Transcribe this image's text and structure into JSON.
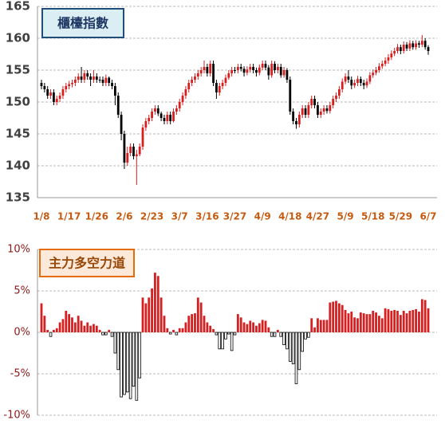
{
  "chart_data": [
    {
      "type": "candlestick",
      "title": "櫃檯指數",
      "categories": [
        "1/8",
        null,
        null,
        null,
        null,
        null,
        null,
        null,
        null,
        "1/17",
        null,
        null,
        null,
        null,
        null,
        null,
        null,
        null,
        "1/26",
        null,
        null,
        null,
        null,
        null,
        null,
        null,
        null,
        "2/6",
        null,
        null,
        null,
        null,
        null,
        null,
        null,
        null,
        "2/23",
        null,
        null,
        null,
        null,
        null,
        null,
        null,
        null,
        "3/7",
        null,
        null,
        null,
        null,
        null,
        null,
        null,
        null,
        "3/16",
        null,
        null,
        null,
        null,
        null,
        null,
        null,
        null,
        "3/27",
        null,
        null,
        null,
        null,
        null,
        null,
        null,
        null,
        "4/9",
        null,
        null,
        null,
        null,
        null,
        null,
        null,
        null,
        "4/18",
        null,
        null,
        null,
        null,
        null,
        null,
        null,
        null,
        "4/27",
        null,
        null,
        null,
        null,
        null,
        null,
        null,
        null,
        "5/9",
        null,
        null,
        null,
        null,
        null,
        null,
        null,
        null,
        "5/18",
        null,
        null,
        null,
        null,
        null,
        null,
        null,
        null,
        "5/29",
        null,
        null,
        null,
        null,
        null,
        null,
        null,
        null,
        "6/7"
      ],
      "open": [
        153,
        152.5,
        152,
        151,
        151.5,
        150,
        150.5,
        151,
        152,
        152.5,
        152.8,
        153,
        153.5,
        154,
        153.5,
        154.5,
        154,
        153.5,
        154,
        153.5,
        153.5,
        153,
        153.8,
        153,
        152.5,
        151,
        148,
        145,
        140.5,
        142,
        143,
        141.5,
        141.8,
        143,
        146,
        147,
        147.5,
        148.5,
        149,
        148.2,
        147.5,
        147,
        148,
        147,
        148.5,
        149,
        150,
        151,
        152,
        153,
        153.5,
        154,
        154.5,
        155,
        155.5,
        154.5,
        156,
        153,
        151.5,
        152.5,
        153,
        153.8,
        154.5,
        155,
        155,
        155.5,
        155.2,
        154.6,
        155.1,
        155.5,
        155,
        154.6,
        155.4,
        156,
        155.4,
        154.2,
        156,
        155,
        155.5,
        154.2,
        155,
        153.5,
        148.5,
        147,
        146.5,
        148,
        149,
        148,
        149.5,
        150.5,
        149.5,
        148,
        148.5,
        149,
        148.6,
        149.5,
        150.5,
        151,
        152,
        153.2,
        154,
        153.5,
        152.6,
        153,
        153.6,
        153,
        152.6,
        153.2,
        154.2,
        154.6,
        155,
        155.6,
        156,
        156.5,
        157,
        157.6,
        158,
        158.6,
        158,
        159,
        158.4,
        159.2,
        158.6,
        159.2,
        159,
        159.6,
        158.6
      ],
      "high": [
        153.5,
        153,
        152.5,
        152,
        152,
        151,
        151.5,
        152.5,
        153,
        153.3,
        153.5,
        154,
        154.5,
        155.5,
        155,
        155,
        154.5,
        155,
        154.5,
        154,
        154,
        154.3,
        154,
        153.5,
        153,
        151.5,
        148.5,
        145.5,
        143,
        143.5,
        143.5,
        142.5,
        143.5,
        146.5,
        147.5,
        148,
        149,
        149.5,
        149.5,
        148.5,
        148,
        148.5,
        148.5,
        149,
        149.5,
        150.5,
        151.5,
        152.5,
        153.5,
        154,
        154.5,
        155,
        155.5,
        156.5,
        156,
        156.5,
        156.5,
        153.5,
        153,
        153.5,
        154.3,
        155,
        155.5,
        155.5,
        156,
        156,
        155.6,
        155.6,
        156,
        156,
        155.4,
        155.9,
        156.5,
        156.5,
        155.8,
        156.5,
        156.4,
        156,
        156,
        155.5,
        155.3,
        154,
        149,
        147.5,
        148.5,
        149.5,
        149.5,
        150,
        151,
        151,
        150,
        149,
        149.5,
        149.5,
        150,
        151,
        151.5,
        152.5,
        153.7,
        154.5,
        155,
        154,
        153.5,
        154.1,
        154,
        153.5,
        153.7,
        154.7,
        155.1,
        155.5,
        156.1,
        156.5,
        157,
        157.5,
        158.1,
        158.5,
        159.1,
        159,
        159.5,
        159.4,
        159.7,
        159.6,
        159.7,
        159.6,
        160.5,
        160,
        158.9
      ],
      "low": [
        152,
        151.5,
        150.5,
        150.5,
        149.5,
        149.5,
        150,
        150.5,
        151.5,
        152,
        152.3,
        152.5,
        153,
        153,
        153,
        153.5,
        152.5,
        153,
        153,
        153,
        152.5,
        152.5,
        152.5,
        152,
        149.5,
        147.5,
        144,
        139.5,
        140,
        141.5,
        141,
        137,
        141.5,
        142.5,
        145.5,
        146.5,
        147,
        148,
        147.8,
        147,
        146.5,
        146.5,
        146.5,
        146.8,
        148,
        148.5,
        149.5,
        150.5,
        151.5,
        152.5,
        153,
        153.5,
        154,
        154.5,
        154,
        154,
        152.5,
        150.5,
        151,
        152,
        152.5,
        153.5,
        154,
        154.5,
        154.5,
        154.8,
        154,
        154.2,
        154.6,
        154.5,
        154,
        154.2,
        155,
        155,
        153.5,
        153.8,
        154.5,
        154.5,
        153.8,
        153.8,
        153,
        148,
        146.5,
        145.8,
        146,
        147.5,
        147.5,
        147.5,
        149,
        149,
        147.5,
        147.5,
        148,
        148.2,
        148.2,
        149,
        150,
        150.5,
        151.5,
        152.8,
        153,
        152,
        152.2,
        152.5,
        152.5,
        152,
        152.2,
        152.8,
        153.8,
        154.2,
        154.6,
        155.2,
        155.6,
        156,
        156.6,
        157.2,
        157.6,
        157.5,
        157.6,
        158,
        158,
        158.2,
        158.2,
        158.5,
        158.6,
        158.2,
        157.4
      ],
      "close": [
        152.5,
        152,
        151,
        151.5,
        150,
        150.5,
        151,
        152,
        152.5,
        152.8,
        153,
        153.5,
        154,
        153.5,
        154.5,
        154,
        153.5,
        154,
        153.5,
        153.5,
        153,
        153.8,
        153,
        152.5,
        151,
        148,
        145,
        140.5,
        142,
        143,
        141.5,
        141.8,
        143,
        146,
        147,
        147.5,
        148.5,
        149,
        148.2,
        147.5,
        147,
        148,
        147,
        148.5,
        149,
        150,
        151,
        152,
        153,
        153.5,
        154,
        154.5,
        155,
        155.5,
        154.5,
        156,
        153,
        151.5,
        152.5,
        153,
        153.8,
        154.5,
        155,
        155,
        155.5,
        155.2,
        154.6,
        155.1,
        155.5,
        155,
        154.6,
        155.4,
        156,
        155.4,
        154.2,
        156,
        155,
        155.5,
        154.2,
        155,
        153.5,
        148.5,
        147,
        146.5,
        148,
        149,
        148,
        149.5,
        150.5,
        149.5,
        148,
        148.5,
        149,
        148.6,
        149.5,
        150.5,
        151,
        152,
        153.2,
        154,
        153.5,
        152.6,
        153,
        153.6,
        153,
        152.6,
        153.2,
        154.2,
        154.6,
        155,
        155.6,
        156,
        156.5,
        157,
        157.6,
        158,
        158.6,
        158,
        159,
        158.4,
        159.2,
        158.6,
        159.2,
        159,
        159.6,
        158.6,
        158
      ],
      "up_color": "#d42020",
      "down_color": "#000000",
      "ylim": [
        135,
        165
      ],
      "yticks": [
        135,
        140,
        145,
        150,
        155,
        160,
        165
      ],
      "grid": true
    },
    {
      "type": "bar",
      "title": "主力多空力道",
      "values": [
        3.5,
        2,
        0.3,
        -0.5,
        0.3,
        0.5,
        1.2,
        1.6,
        2.6,
        2.2,
        1.8,
        1.2,
        2,
        1.4,
        0.8,
        1.2,
        0.8,
        1,
        0.8,
        0.3,
        -0.3,
        -0.3,
        0.3,
        -0.5,
        -2.5,
        -4.5,
        -7.8,
        -7.5,
        -7.2,
        -8,
        -6.5,
        -8.2,
        -5.5,
        4.2,
        3.5,
        4.2,
        5.3,
        7.2,
        6.8,
        4.2,
        2,
        0.5,
        -0.2,
        0.3,
        -0.3,
        0.5,
        0.5,
        1.2,
        2,
        2.2,
        2.3,
        4.2,
        3.6,
        2,
        1.2,
        0.8,
        0.4,
        -0.3,
        -2,
        -2,
        -0.8,
        -0.2,
        -2.2,
        -0.3,
        2.2,
        1.8,
        1.2,
        1,
        1.4,
        1.2,
        0.8,
        1.1,
        1.5,
        1.4,
        0.6,
        -0.5,
        -0.5,
        0.3,
        -0.5,
        -1.5,
        -2,
        -3.5,
        -3.8,
        -6.2,
        -4.5,
        -2.3,
        -0.8,
        -0.6,
        1.7,
        0.6,
        1.7,
        1.5,
        1.5,
        1.5,
        3.6,
        3.7,
        3.8,
        3.5,
        3.3,
        2.7,
        2.3,
        2.5,
        1.8,
        1.7,
        2.4,
        2.3,
        2.2,
        2.2,
        2.6,
        2.4,
        2,
        1.7,
        2.9,
        2.8,
        2.6,
        2.7,
        2.6,
        2.1,
        2.6,
        2.3,
        2.6,
        2.7,
        2.8,
        2.5,
        4,
        3.9,
        2.9
      ],
      "pos_color": "#d42020",
      "neg_color": "#ffffff",
      "ylim": [
        -10,
        10
      ],
      "yticks": [
        {
          "value": -10,
          "label": "-10%"
        },
        {
          "value": -5,
          "label": "-5%"
        },
        {
          "value": 0,
          "label": "0%"
        },
        {
          "value": 5,
          "label": "5%"
        },
        {
          "value": 10,
          "label": "10%"
        }
      ],
      "grid": true
    }
  ]
}
